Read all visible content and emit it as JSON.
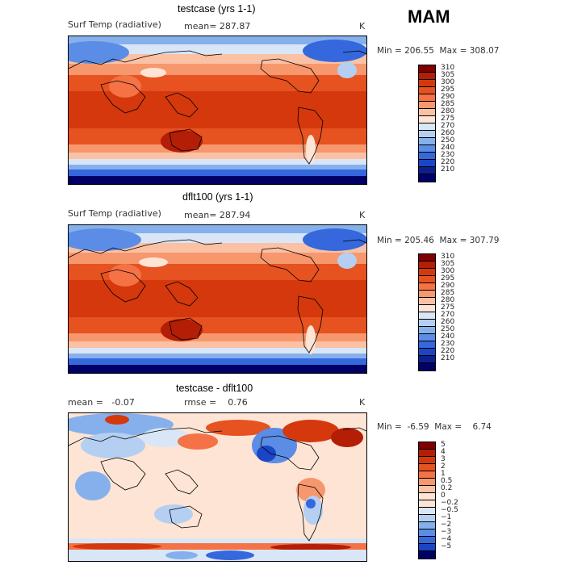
{
  "season": "MAM",
  "panels": [
    {
      "title": "testcase (yrs 1-1)",
      "variable": "Surf Temp (radiative)",
      "stats": "mean= 287.87",
      "units": "K",
      "minmax": "Min = 206.55  Max = 308.07",
      "colorbar": [
        "310",
        "305",
        "300",
        "295",
        "290",
        "285",
        "280",
        "275",
        "270",
        "260",
        "250",
        "240",
        "230",
        "220",
        "210"
      ]
    },
    {
      "title": "dflt100 (yrs 1-1)",
      "variable": "Surf Temp (radiative)",
      "stats": "mean= 287.94",
      "units": "K",
      "minmax": "Min = 205.46  Max = 307.79",
      "colorbar": [
        "310",
        "305",
        "300",
        "295",
        "290",
        "285",
        "280",
        "275",
        "270",
        "260",
        "250",
        "240",
        "230",
        "220",
        "210"
      ]
    },
    {
      "title": "testcase - dflt100",
      "mean_label": "mean =   -0.07",
      "rmse_label": "rmse =    0.76",
      "units": "K",
      "minmax": "Min =  -6.59  Max =    6.74",
      "colorbar": [
        "5",
        "4",
        "3",
        "2",
        "1",
        "0.5",
        "0.2",
        "0",
        "−0.2",
        "−0.5",
        "−1",
        "−2",
        "−3",
        "−4",
        "−5"
      ]
    }
  ],
  "colors": {
    "abs_scale": [
      "#7f0000",
      "#b41d06",
      "#d4380c",
      "#e65220",
      "#f47245",
      "#f7976d",
      "#fac1a5",
      "#fde4d4",
      "#d9e6f7",
      "#b4cff2",
      "#86b0ec",
      "#5b8de6",
      "#3568dc",
      "#1a45c5",
      "#0d1f8e",
      "#000066"
    ],
    "diff_scale": [
      "#7f0000",
      "#b41d06",
      "#d4380c",
      "#e65220",
      "#f47245",
      "#f7976d",
      "#fac1a5",
      "#fde4d4",
      "#fde4d4",
      "#d9e6f7",
      "#b4cff2",
      "#86b0ec",
      "#5b8de6",
      "#3568dc",
      "#1a45c5",
      "#000066"
    ],
    "coast": "#000000",
    "frame": "#000000"
  }
}
